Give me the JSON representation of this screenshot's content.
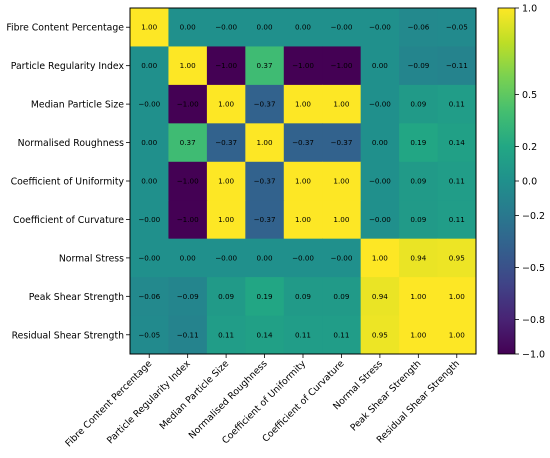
{
  "chart_data": {
    "type": "heatmap",
    "labels": [
      "Fibre Content Percentage",
      "Particle Regularity Index",
      "Median Particle Size",
      "Normalised Roughness",
      "Coefficient of Uniformity",
      "Coefficient of Curvature",
      "Normal Stress",
      "Peak Shear Strength",
      "Residual Shear Strength"
    ],
    "matrix": [
      [
        1.0,
        0.0,
        -0.0,
        0.0,
        0.0,
        -0.0,
        -0.0,
        -0.06,
        -0.05
      ],
      [
        0.0,
        1.0,
        -1.0,
        0.37,
        -1.0,
        -1.0,
        0.0,
        -0.09,
        -0.11
      ],
      [
        -0.0,
        -1.0,
        1.0,
        -0.37,
        1.0,
        1.0,
        -0.0,
        0.09,
        0.11
      ],
      [
        0.0,
        0.37,
        -0.37,
        1.0,
        -0.37,
        -0.37,
        0.0,
        0.19,
        0.14
      ],
      [
        0.0,
        -1.0,
        1.0,
        -0.37,
        1.0,
        1.0,
        -0.0,
        0.09,
        0.11
      ],
      [
        -0.0,
        -1.0,
        1.0,
        -0.37,
        1.0,
        1.0,
        -0.0,
        0.09,
        0.11
      ],
      [
        -0.0,
        0.0,
        -0.0,
        0.0,
        -0.0,
        -0.0,
        1.0,
        0.94,
        0.95
      ],
      [
        -0.06,
        -0.09,
        0.09,
        0.19,
        0.09,
        0.09,
        0.94,
        1.0,
        1.0
      ],
      [
        -0.05,
        -0.11,
        0.11,
        0.14,
        0.11,
        0.11,
        0.95,
        1.0,
        1.0
      ]
    ],
    "cell_labels": [
      [
        "1.00",
        "0.00",
        "−0.00",
        "0.00",
        "0.00",
        "−0.00",
        "−0.00",
        "−0.06",
        "−0.05"
      ],
      [
        "0.00",
        "1.00",
        "−1.00",
        "0.37",
        "−1.00",
        "−1.00",
        "0.00",
        "−0.09",
        "−0.11"
      ],
      [
        "−0.00",
        "−1.00",
        "1.00",
        "−0.37",
        "1.00",
        "1.00",
        "−0.00",
        "0.09",
        "0.11"
      ],
      [
        "0.00",
        "0.37",
        "−0.37",
        "1.00",
        "−0.37",
        "−0.37",
        "0.00",
        "0.19",
        "0.14"
      ],
      [
        "0.00",
        "−1.00",
        "1.00",
        "−0.37",
        "1.00",
        "1.00",
        "−0.00",
        "0.09",
        "0.11"
      ],
      [
        "−0.00",
        "−1.00",
        "1.00",
        "−0.37",
        "1.00",
        "1.00",
        "−0.00",
        "0.09",
        "0.11"
      ],
      [
        "−0.00",
        "0.00",
        "−0.00",
        "0.00",
        "−0.00",
        "−0.00",
        "1.00",
        "0.94",
        "0.95"
      ],
      [
        "−0.06",
        "−0.09",
        "0.09",
        "0.19",
        "0.09",
        "0.09",
        "0.94",
        "1.00",
        "1.00"
      ],
      [
        "−0.05",
        "−0.11",
        "0.11",
        "0.14",
        "0.11",
        "0.11",
        "0.95",
        "1.00",
        "1.00"
      ]
    ],
    "colormap": "viridis",
    "vmin": -1.0,
    "vmax": 1.0,
    "colorbar": {
      "ticks": [
        1.0,
        0.5,
        0.2,
        0.0,
        -0.2,
        -0.5,
        -0.8,
        -1.0
      ],
      "tick_labels": [
        "1.0",
        "0.5",
        "0.2",
        "0.0",
        "−0.2",
        "−0.5",
        "−0.8",
        "−1.0"
      ],
      "placement": "right"
    },
    "title": "",
    "xlabel": "",
    "ylabel": ""
  }
}
